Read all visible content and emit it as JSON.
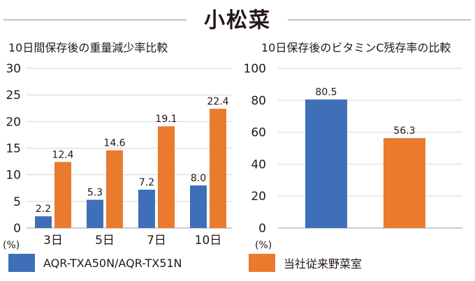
{
  "title": "小松菜",
  "chart_data": [
    {
      "type": "bar",
      "title": "10日間保存後の重量減少率比較",
      "categories": [
        "3日",
        "5日",
        "7日",
        "10日"
      ],
      "ylim": [
        0,
        30
      ],
      "yticks": [
        0,
        5,
        10,
        15,
        20,
        25,
        30
      ],
      "yunit": "(%)",
      "grid": true,
      "series": [
        {
          "name": "AQR-TXA50N/AQR-TX51N",
          "color": "#3e6fb8",
          "values": [
            2.2,
            5.3,
            7.2,
            8.0
          ],
          "labels": [
            "2.2",
            "5.3",
            "7.2",
            "8.0"
          ]
        },
        {
          "name": "当社従来野菜室",
          "color": "#e97a2e",
          "values": [
            12.4,
            14.6,
            19.1,
            22.4
          ],
          "labels": [
            "12.4",
            "14.6",
            "19.1",
            "22.4"
          ]
        }
      ]
    },
    {
      "type": "bar",
      "title": "10日保存後のビタミンC残存率の比較",
      "categories": [
        ""
      ],
      "ylim": [
        0,
        100
      ],
      "yticks": [
        0,
        20,
        40,
        60,
        80,
        100
      ],
      "yunit": "(%)",
      "grid": true,
      "series": [
        {
          "name": "AQR-TXA50N/AQR-TX51N",
          "color": "#3e6fb8",
          "values": [
            80.5
          ],
          "labels": [
            "80.5"
          ]
        },
        {
          "name": "当社従来野菜室",
          "color": "#e97a2e",
          "values": [
            56.3
          ],
          "labels": [
            "56.3"
          ]
        }
      ]
    }
  ],
  "legend": [
    {
      "label": "AQR-TXA50N/AQR-TX51N",
      "color": "#3e6fb8"
    },
    {
      "label": "当社従来野菜室",
      "color": "#e97a2e"
    }
  ]
}
